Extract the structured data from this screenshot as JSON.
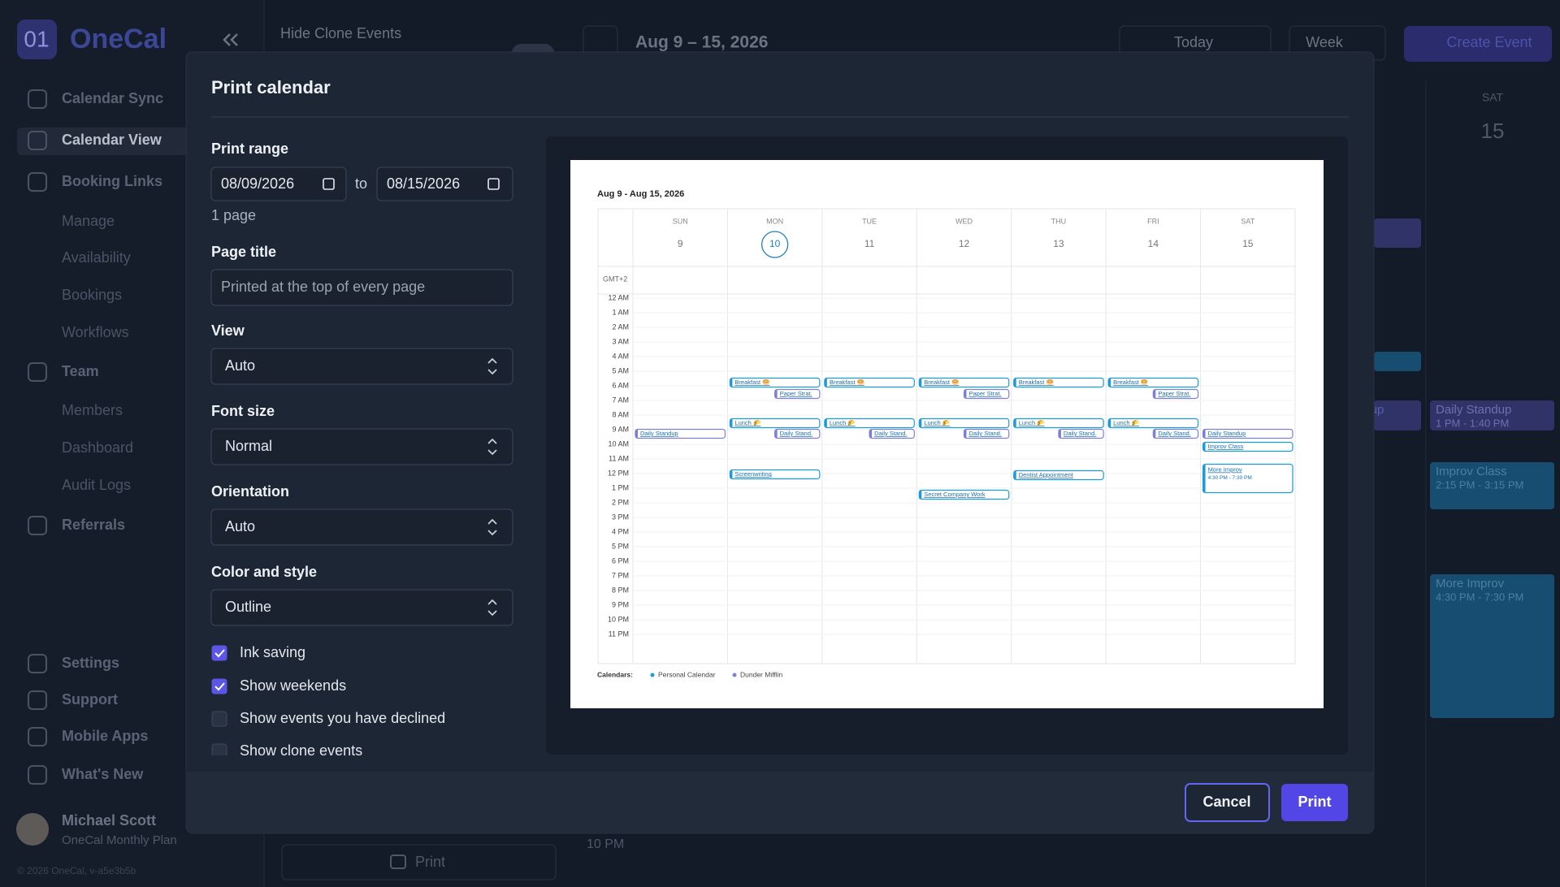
{
  "sidebar": {
    "logo_mark": "01",
    "brand": "OneCal",
    "nav": [
      "Calendar Sync",
      "Calendar View",
      "Booking Links",
      "Manage",
      "Availability",
      "Bookings",
      "Workflows",
      "Team",
      "Members",
      "Dashboard",
      "Audit Logs",
      "Referrals",
      "Settings",
      "Support",
      "Mobile Apps",
      "What's New"
    ],
    "user": {
      "name": "Michael Scott",
      "plan": "OneCal Monthly Plan"
    },
    "version": "© 2026 OneCal, v-a5e3b5b"
  },
  "toolbar": {
    "toggle_label": "Hide Clone Events",
    "range": "Aug 9 – 15, 2026",
    "today": "Today",
    "view": "Week",
    "create": "Create Event"
  },
  "background": {
    "day_name": "SAT",
    "day_number": 15,
    "events": [
      {
        "title": "Daily Standup"
      },
      {
        "title": "Daily Standup",
        "time": "1 PM - 1:40 PM"
      },
      {
        "title": "Improv Class",
        "time": "2:15 PM - 3:15 PM"
      },
      {
        "title": "More Improv",
        "time": "4:30 PM - 7:30 PM"
      }
    ],
    "hour_label": "10 PM",
    "print": "Print"
  },
  "dialog": {
    "title": "Print calendar",
    "print_range": {
      "label": "Print range",
      "from": "08/09/2026",
      "to_word": "to",
      "to": "08/15/2026",
      "pages": "1 page"
    },
    "fields": [
      {
        "label": "Page title",
        "placeholder": "Printed at the top of every page"
      },
      {
        "label": "View",
        "value": "Auto"
      },
      {
        "label": "Font size",
        "value": "Normal"
      },
      {
        "label": "Orientation",
        "value": "Auto"
      },
      {
        "label": "Color and style",
        "value": "Outline"
      }
    ],
    "checkboxes": [
      {
        "label": "Ink saving",
        "checked": true
      },
      {
        "label": "Show weekends",
        "checked": true
      },
      {
        "label": "Show events you have declined",
        "checked": false
      },
      {
        "label": "Show clone events",
        "checked": false
      }
    ],
    "buttons": {
      "cancel": "Cancel",
      "print": "Print"
    }
  },
  "preview": {
    "title": "Aug 9 - Aug 15, 2026",
    "days": [
      {
        "name": "SUN",
        "number": 9
      },
      {
        "name": "MON",
        "number": 10,
        "highlight": true
      },
      {
        "name": "TUE",
        "number": 11
      },
      {
        "name": "WED",
        "number": 12
      },
      {
        "name": "THU",
        "number": 13
      },
      {
        "name": "FRI",
        "number": 14
      },
      {
        "name": "SAT",
        "number": 15
      }
    ],
    "timezone": "GMT+2",
    "hours": [
      "12 AM",
      "1 AM",
      "2 AM",
      "3 AM",
      "4 AM",
      "5 AM",
      "6 AM",
      "7 AM",
      "8 AM",
      "9 AM",
      "10 AM",
      "11 AM",
      "12 PM",
      "1 PM",
      "2 PM",
      "3 PM",
      "4 PM",
      "5 PM",
      "6 PM",
      "7 PM",
      "8 PM",
      "9 PM",
      "10 PM",
      "11 PM"
    ],
    "events": [
      {
        "title": "Daily Standup"
      },
      {
        "title": "Breakfast 🥯"
      },
      {
        "title": "Paper Strat."
      },
      {
        "title": "Lunch 🌮"
      },
      {
        "title": "Daily Stand."
      },
      {
        "title": "Screenwriting"
      },
      {
        "title": "Breakfast 🥯"
      },
      {
        "title": "Lunch 🌮"
      },
      {
        "title": "Daily Stand."
      },
      {
        "title": "Breakfast 🥯"
      },
      {
        "title": "Paper Strat."
      },
      {
        "title": "Lunch 🌮"
      },
      {
        "title": "Daily Stand."
      },
      {
        "title": "Secret Company Work"
      },
      {
        "title": "Breakfast 🥯"
      },
      {
        "title": "Lunch 🌮"
      },
      {
        "title": "Daily Stand."
      },
      {
        "title": "Dentist Appointment"
      },
      {
        "title": "Breakfast 🥯"
      },
      {
        "title": "Paper Strat."
      },
      {
        "title": "Lunch 🌮"
      },
      {
        "title": "Daily Stand."
      },
      {
        "title": "Daily Standup"
      },
      {
        "title": "Improv Class"
      },
      {
        "title": "More Improv",
        "time": "4:30 PM - 7:30 PM"
      }
    ],
    "legend": {
      "label": "Calendars:",
      "items": [
        {
          "name": "Personal Calendar",
          "color": "#1d9bd8"
        },
        {
          "name": "Dunder Mifflin",
          "color": "#7c80d6"
        }
      ]
    }
  }
}
